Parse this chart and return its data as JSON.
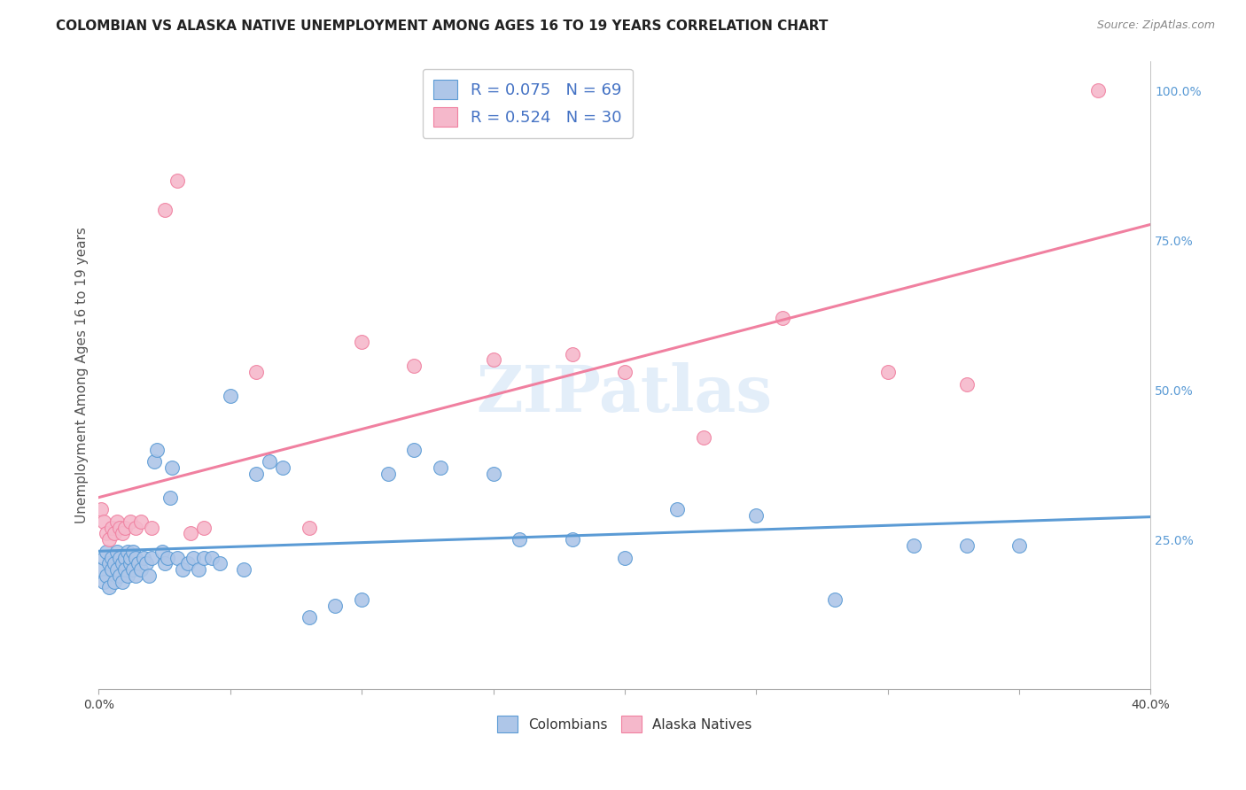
{
  "title": "COLOMBIAN VS ALASKA NATIVE UNEMPLOYMENT AMONG AGES 16 TO 19 YEARS CORRELATION CHART",
  "source": "Source: ZipAtlas.com",
  "ylabel": "Unemployment Among Ages 16 to 19 years",
  "xlim": [
    0.0,
    0.4
  ],
  "ylim": [
    0.0,
    1.05
  ],
  "yticks_right": [
    0.25,
    0.5,
    0.75,
    1.0
  ],
  "ytick_right_labels": [
    "25.0%",
    "50.0%",
    "75.0%",
    "100.0%"
  ],
  "colombian_color": "#aec6e8",
  "alaska_color": "#f5b8cb",
  "colombian_line_color": "#5b9bd5",
  "alaska_line_color": "#f080a0",
  "colombian_x": [
    0.001,
    0.002,
    0.002,
    0.003,
    0.003,
    0.004,
    0.004,
    0.005,
    0.005,
    0.006,
    0.006,
    0.007,
    0.007,
    0.008,
    0.008,
    0.009,
    0.009,
    0.01,
    0.01,
    0.011,
    0.011,
    0.012,
    0.012,
    0.013,
    0.013,
    0.014,
    0.014,
    0.015,
    0.016,
    0.017,
    0.018,
    0.019,
    0.02,
    0.021,
    0.022,
    0.024,
    0.025,
    0.026,
    0.027,
    0.028,
    0.03,
    0.032,
    0.034,
    0.036,
    0.038,
    0.04,
    0.043,
    0.046,
    0.05,
    0.055,
    0.06,
    0.065,
    0.07,
    0.08,
    0.09,
    0.1,
    0.11,
    0.12,
    0.13,
    0.15,
    0.16,
    0.18,
    0.2,
    0.22,
    0.25,
    0.28,
    0.31,
    0.33,
    0.35
  ],
  "colombian_y": [
    0.2,
    0.18,
    0.22,
    0.19,
    0.23,
    0.21,
    0.17,
    0.22,
    0.2,
    0.18,
    0.21,
    0.23,
    0.2,
    0.19,
    0.22,
    0.21,
    0.18,
    0.22,
    0.2,
    0.23,
    0.19,
    0.21,
    0.22,
    0.2,
    0.23,
    0.19,
    0.22,
    0.21,
    0.2,
    0.22,
    0.21,
    0.19,
    0.22,
    0.38,
    0.4,
    0.23,
    0.21,
    0.22,
    0.32,
    0.37,
    0.22,
    0.2,
    0.21,
    0.22,
    0.2,
    0.22,
    0.22,
    0.21,
    0.49,
    0.2,
    0.36,
    0.38,
    0.37,
    0.12,
    0.14,
    0.15,
    0.36,
    0.4,
    0.37,
    0.36,
    0.25,
    0.25,
    0.22,
    0.3,
    0.29,
    0.15,
    0.24,
    0.24,
    0.24
  ],
  "alaska_x": [
    0.001,
    0.002,
    0.003,
    0.004,
    0.005,
    0.006,
    0.007,
    0.008,
    0.009,
    0.01,
    0.012,
    0.014,
    0.016,
    0.02,
    0.025,
    0.03,
    0.035,
    0.04,
    0.06,
    0.08,
    0.1,
    0.12,
    0.15,
    0.18,
    0.2,
    0.23,
    0.26,
    0.3,
    0.33,
    0.38
  ],
  "alaska_y": [
    0.3,
    0.28,
    0.26,
    0.25,
    0.27,
    0.26,
    0.28,
    0.27,
    0.26,
    0.27,
    0.28,
    0.27,
    0.28,
    0.27,
    0.8,
    0.85,
    0.26,
    0.27,
    0.53,
    0.27,
    0.58,
    0.54,
    0.55,
    0.56,
    0.53,
    0.42,
    0.62,
    0.53,
    0.51,
    1.0
  ],
  "watermark_text": "ZIPatlas",
  "background_color": "#ffffff",
  "grid_color": "#d0d0d0",
  "title_fontsize": 11,
  "label_fontsize": 11,
  "tick_fontsize": 10,
  "legend_fontsize": 13,
  "scatter_size": 130
}
